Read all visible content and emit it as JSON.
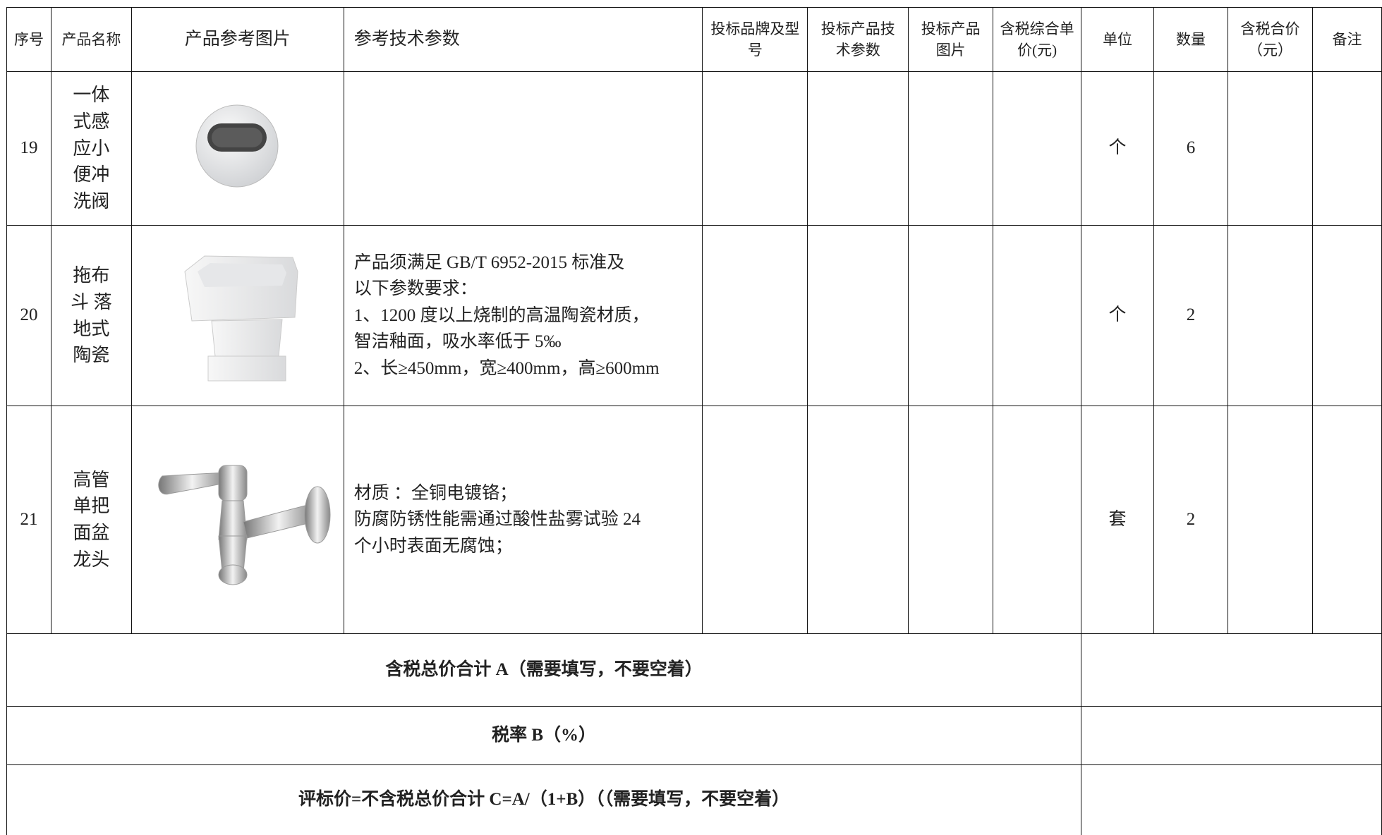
{
  "table": {
    "header": [
      "序号",
      "产品名称",
      "产品参考图片",
      "参考技术参数",
      "投标品牌及型号",
      "投标产品技术参数",
      "投标产品图片",
      "含税综合单价(元)",
      "单位",
      "数量",
      "含税合价（元）",
      "备注"
    ],
    "rows": [
      {
        "no": "19",
        "name": [
          "一体",
          "式感",
          "应小",
          "便冲",
          "洗阀"
        ],
        "unit": "个",
        "qty": "6"
      },
      {
        "no": "20",
        "name": [
          "拖布",
          "斗 落",
          "地式",
          "陶瓷"
        ],
        "params": [
          "产品须满足 GB/T 6952-2015 标准及",
          "以下参数要求：",
          "1、1200 度以上烧制的高温陶瓷材质，",
          "智洁釉面，吸水率低于 5‰",
          "2、长≥450mm，宽≥400mm，高≥600mm"
        ],
        "unit": "个",
        "qty": "2"
      },
      {
        "no": "21",
        "name": [
          "高管",
          "单把",
          "面盆",
          "龙头"
        ],
        "params": [
          "材质 ：全铜电镀铬；",
          "防腐防锈性能需通过酸性盐雾试验 24",
          "个小时表面无腐蚀；"
        ],
        "unit": "套",
        "qty": "2"
      }
    ],
    "footer": [
      "含税总价合计 A（需要填写，不要空着）",
      "税率 B（%）",
      "评标价=不含税总价合计 C=A/（1+B）（（需要填写，不要空着）"
    ]
  }
}
